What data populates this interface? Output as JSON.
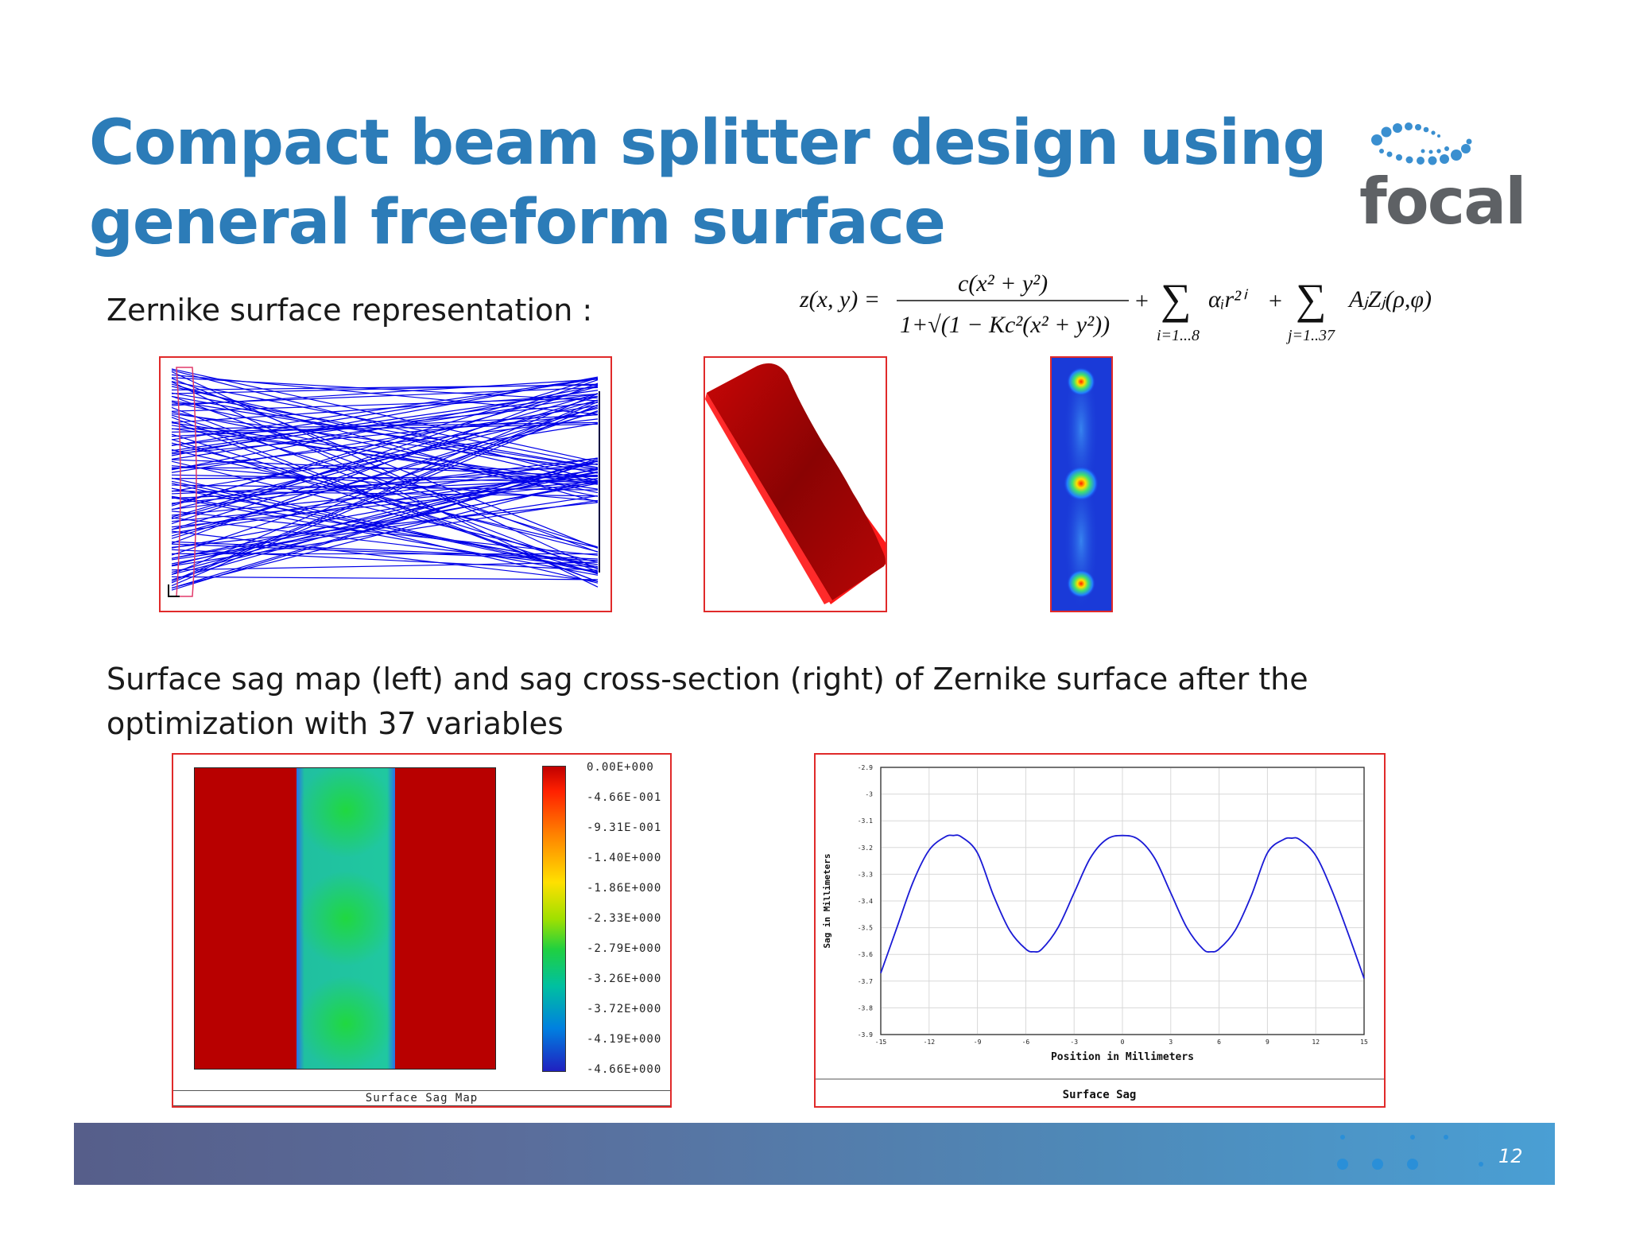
{
  "slide": {
    "title_line1": "Compact beam splitter design using",
    "title_line2": "general freeform surface",
    "logo_text": "focal",
    "subtitle": "Zernike surface representation :",
    "caption_line1": "Surface sag map (left) and sag cross-section (right)  of Zernike surface after the",
    "caption_line2": "optimization with 37 variables",
    "page_number": "12"
  },
  "formula": {
    "lhs": "z(x, y) =",
    "numerator": "c(x² + y²)",
    "denominator": "1+√(1 − Kc²(x² + y²))",
    "term1": "αᵢr²ⁱ",
    "sum1_index": "i=1...8",
    "term2": "AⱼZⱼ(ρ,φ)",
    "sum2_index": "j=1..37"
  },
  "sag_map": {
    "caption": "Surface Sag Map",
    "colorbar_labels": [
      "0.00E+000",
      "-4.66E-001",
      "-9.31E-001",
      "-1.40E+000",
      "-1.86E+000",
      "-2.33E+000",
      "-2.79E+000",
      "-3.26E+000",
      "-3.72E+000",
      "-4.19E+000",
      "-4.66E+000"
    ]
  },
  "chart_data": {
    "type": "line",
    "title": "Surface Sag",
    "xlabel": "Position in Millimeters",
    "ylabel": "Sag in Millimeters",
    "xlim": [
      -15,
      15
    ],
    "ylim": [
      -3.9,
      -2.9
    ],
    "x_ticks": [
      "-15",
      "-12",
      "-9",
      "-6",
      "-3",
      "0",
      "3",
      "6",
      "9",
      "12",
      "15"
    ],
    "y_ticks": [
      "-2.9",
      "-3",
      "-3.1",
      "-3.2",
      "-3.3",
      "-3.4",
      "-3.5",
      "-3.6",
      "-3.7",
      "-3.8",
      "-3.9"
    ],
    "grid": true,
    "series": [
      {
        "color": "#1a1ad6",
        "x": [
          -15,
          -14,
          -13,
          -12,
          -11,
          -10.5,
          -10,
          -9,
          -8,
          -7,
          -6,
          -5.5,
          -5,
          -4,
          -3,
          -2,
          -1,
          0,
          1,
          2,
          3,
          4,
          5,
          5.5,
          6,
          7,
          8,
          9,
          10,
          10.5,
          11,
          12,
          13,
          14,
          15
        ],
        "y": [
          -3.67,
          -3.5,
          -3.33,
          -3.21,
          -3.16,
          -3.155,
          -3.16,
          -3.22,
          -3.38,
          -3.51,
          -3.58,
          -3.59,
          -3.58,
          -3.5,
          -3.37,
          -3.24,
          -3.17,
          -3.155,
          -3.17,
          -3.24,
          -3.37,
          -3.5,
          -3.58,
          -3.59,
          -3.58,
          -3.51,
          -3.38,
          -3.22,
          -3.17,
          -3.165,
          -3.17,
          -3.23,
          -3.36,
          -3.52,
          -3.69
        ]
      }
    ]
  }
}
